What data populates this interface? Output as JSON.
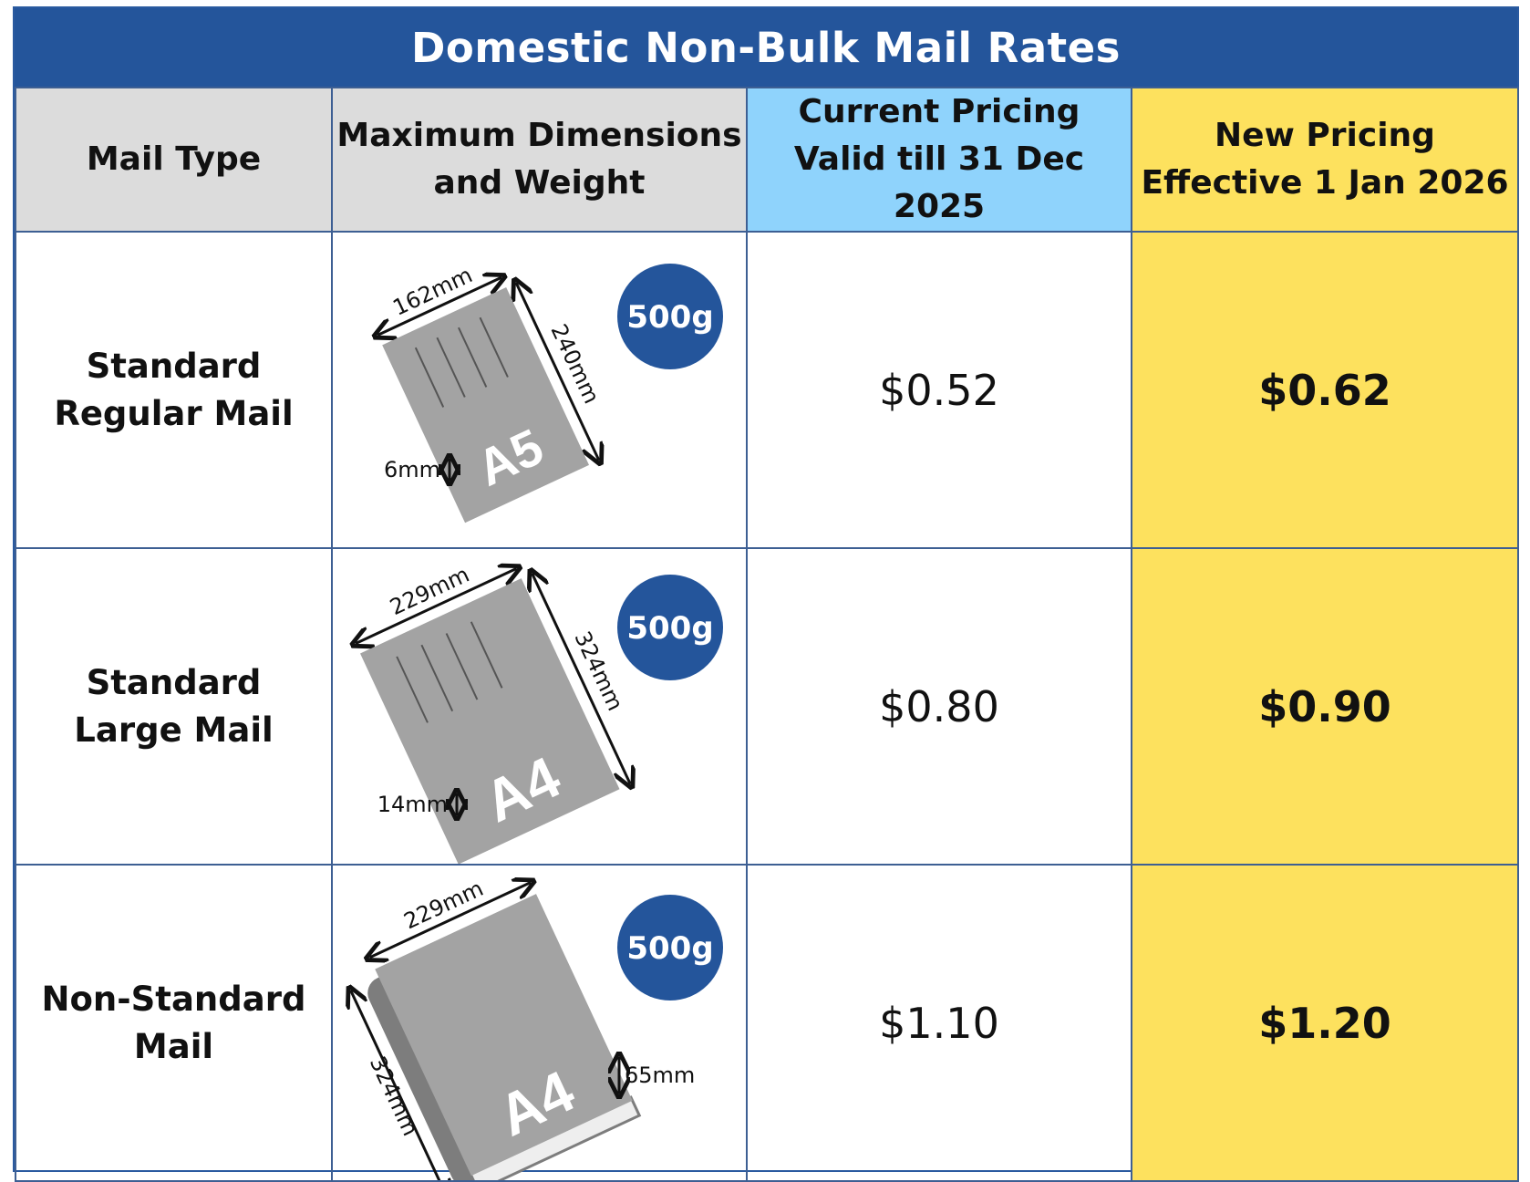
{
  "title": "Domestic Non-Bulk Mail Rates",
  "headers": {
    "mail_type": "Mail Type",
    "dimensions_line1": "Maximum Dimensions",
    "dimensions_line2": "and Weight",
    "current_line1": "Current Pricing",
    "current_line2": "Valid till 31 Dec 2025",
    "new_line1": "New Pricing",
    "new_line2": "Effective 1 Jan 2026"
  },
  "rows": [
    {
      "type_line1": "Standard",
      "type_line2": "Regular Mail",
      "size_label": "A5",
      "width": "162mm",
      "length": "240mm",
      "thickness": "6mm",
      "weight": "500g",
      "current_price": "$0.52",
      "new_price": "$0.62"
    },
    {
      "type_line1": "Standard",
      "type_line2": "Large Mail",
      "size_label": "A4",
      "width": "229mm",
      "length": "324mm",
      "thickness": "14mm",
      "weight": "500g",
      "current_price": "$0.80",
      "new_price": "$0.90"
    },
    {
      "type_line1": "Non-Standard",
      "type_line2": "Mail",
      "size_label": "A4",
      "width": "229mm",
      "length": "324mm",
      "thickness": "65mm",
      "weight": "500g",
      "current_price": "$1.10",
      "new_price": "$1.20"
    }
  ],
  "colors": {
    "title_bg": "#24559b",
    "header_grey": "#dcdcdc",
    "header_blue": "#8fd3fc",
    "header_yellow": "#fde15e",
    "envelope_grey": "#a3a3a3",
    "weight_badge": "#24559b"
  }
}
